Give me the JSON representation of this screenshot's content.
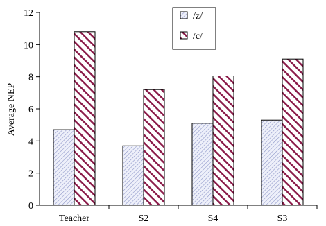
{
  "chart_data": {
    "type": "bar",
    "title": "",
    "xlabel": "",
    "ylabel": "Average NEP",
    "ylim": [
      0,
      12
    ],
    "yticks": [
      "0",
      "2",
      "4",
      "6",
      "8",
      "10",
      "12"
    ],
    "grid": false,
    "legend_position": "top-right",
    "categories": [
      "Teacher",
      "S2",
      "S4",
      "S3"
    ],
    "series": [
      {
        "name": "/z/",
        "values": [
          4.7,
          3.7,
          5.1,
          5.3
        ],
        "color": "#c8ccec",
        "pattern": "light-diagonal-hatch"
      },
      {
        "name": "/c/",
        "values": [
          10.8,
          7.2,
          8.05,
          9.1
        ],
        "color": "#8b1c4a",
        "pattern": "dark-diagonal-stripes"
      }
    ]
  }
}
